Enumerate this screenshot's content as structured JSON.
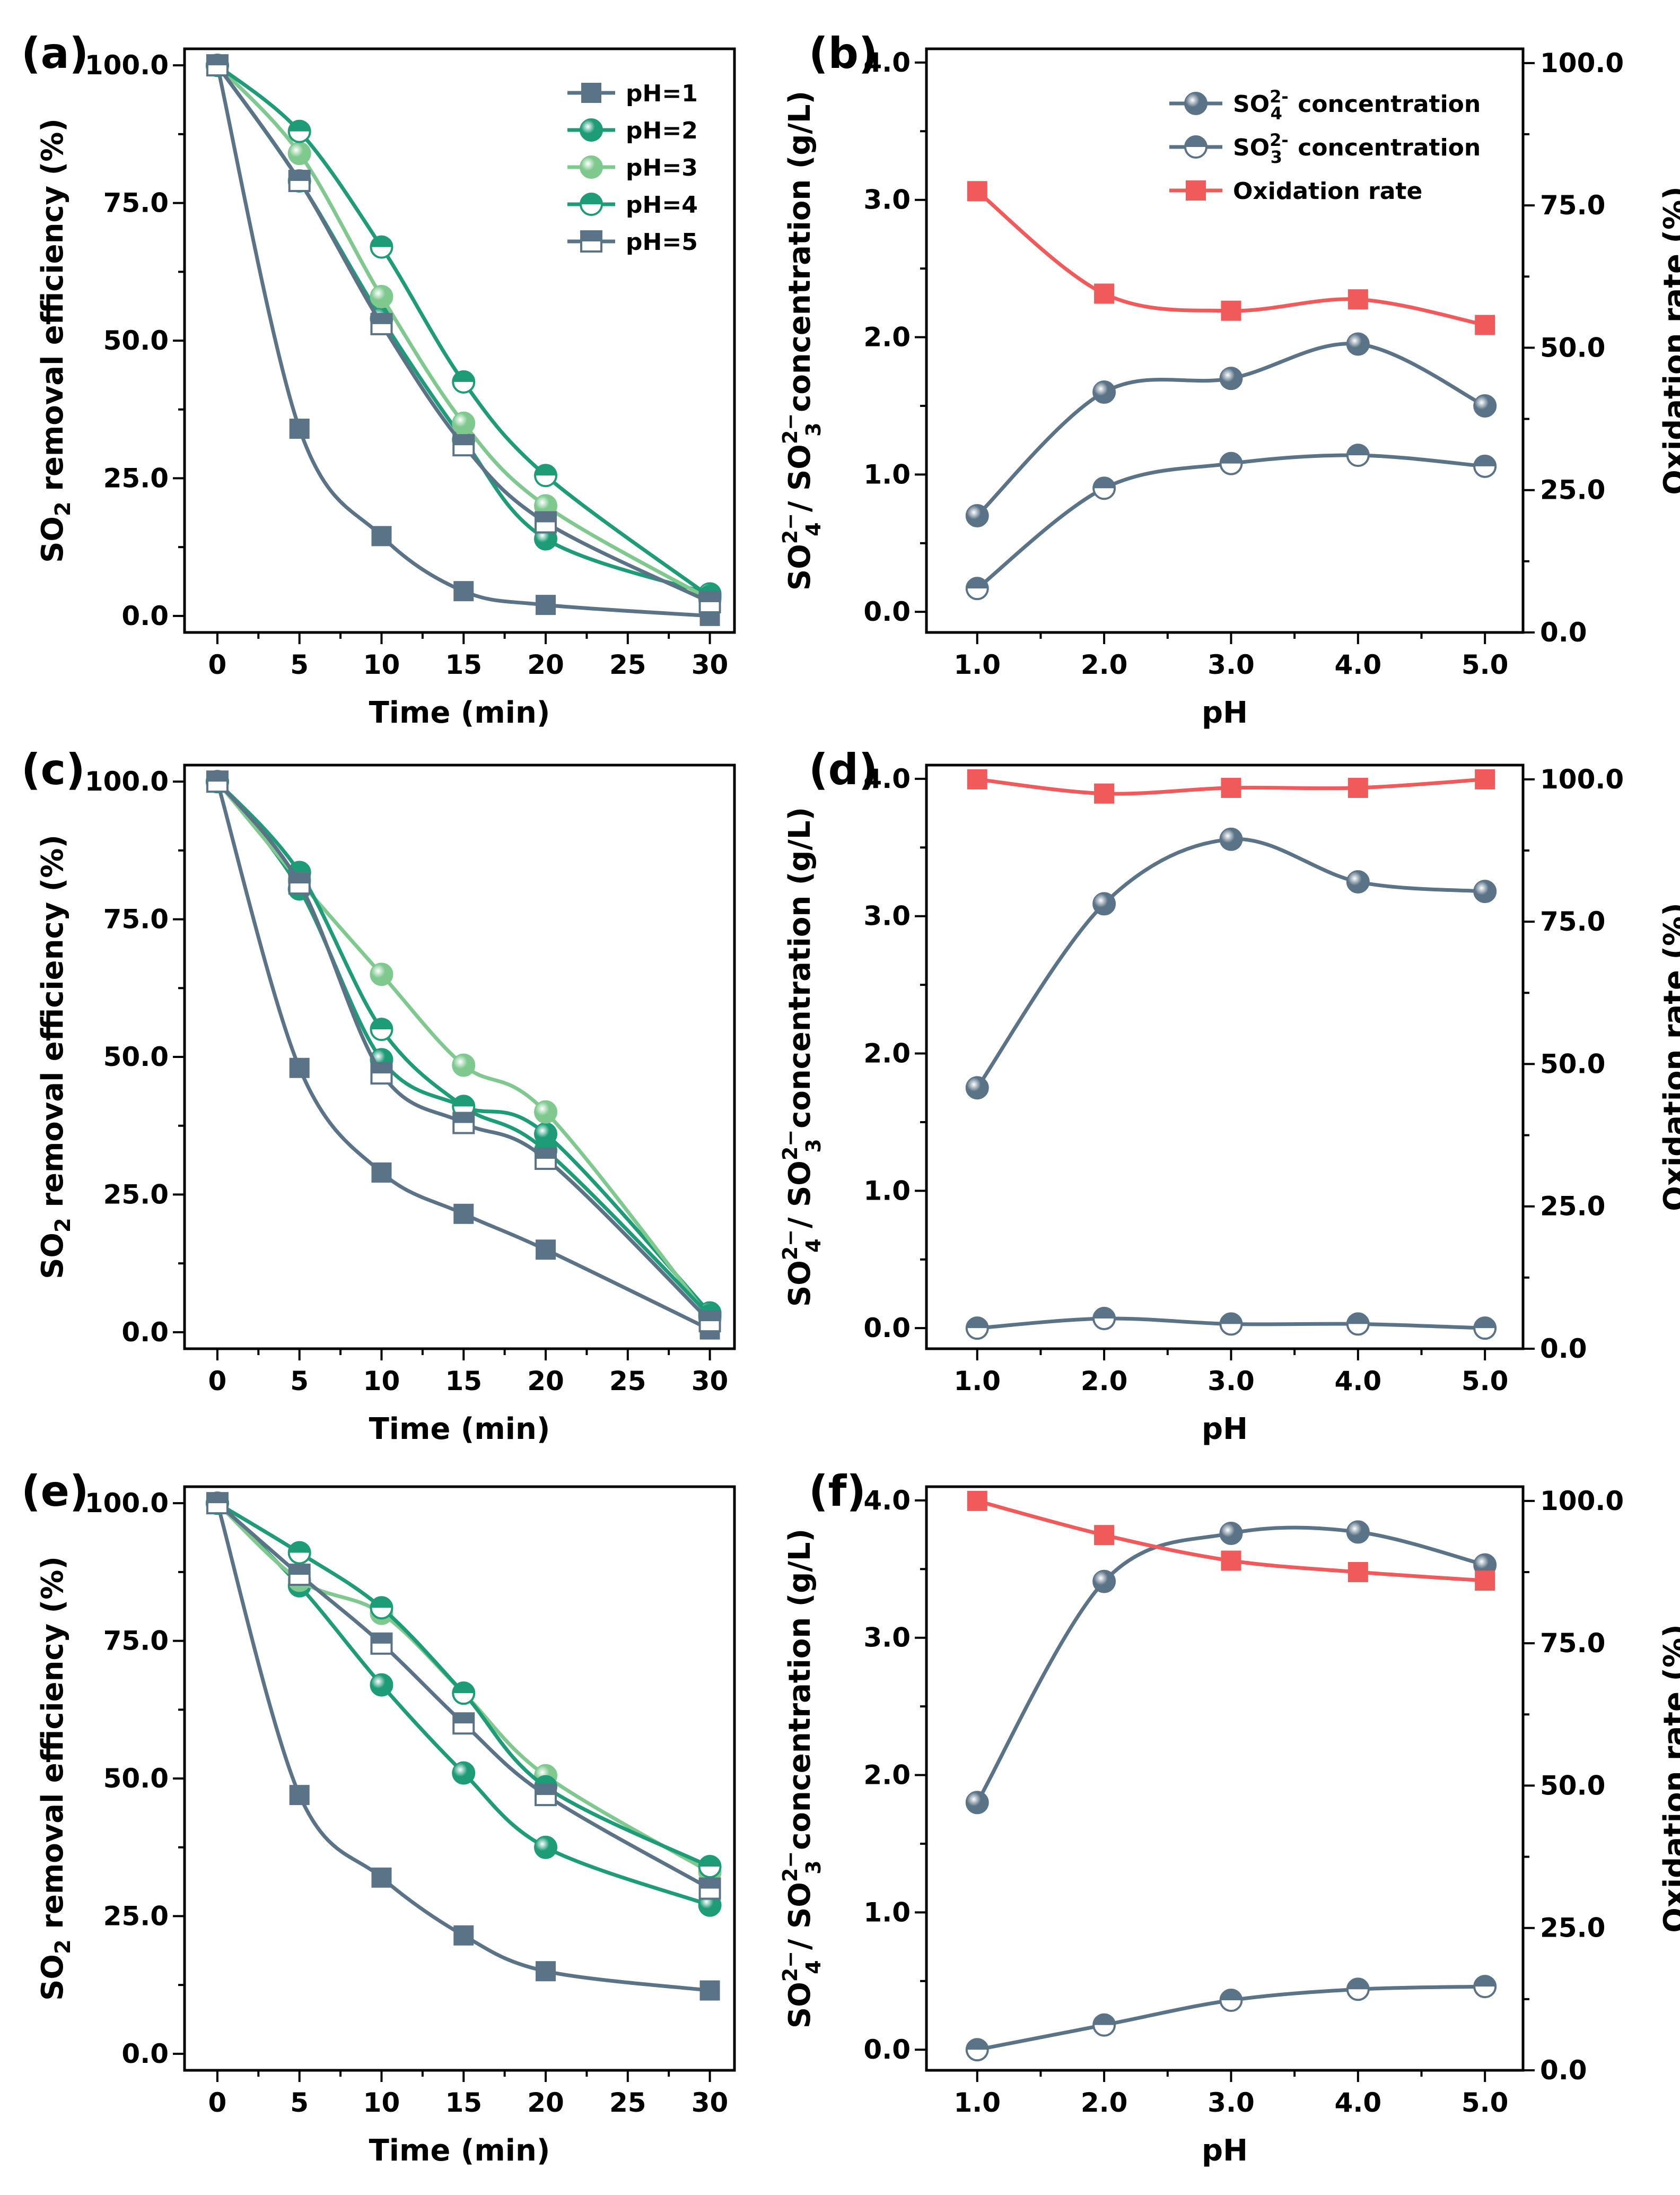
{
  "colors": {
    "ph1": "#5b7386",
    "ph2": "#1e9b77",
    "ph3": "#7fc98f",
    "ph4": "#1e9b77",
    "ph5": "#5b7386",
    "so4": "#5b7386",
    "so3": "#5b7386",
    "ox": "#f05a5a"
  },
  "chart_data": [
    {
      "panel": "(a)",
      "type": "line",
      "xlabel": "Time (min)",
      "ylabel": "SO2 removal efficiency (%)",
      "x": [
        0,
        5,
        10,
        15,
        20,
        30
      ],
      "xticks": [
        "0",
        "5",
        "10",
        "15",
        "20",
        "25",
        "30"
      ],
      "xlim": [
        -2,
        31.5
      ],
      "yticks": [
        "0.0",
        "25.0",
        "50.0",
        "75.0",
        "100.0"
      ],
      "ylim": [
        -3,
        103
      ],
      "legend": "top-right",
      "series": [
        {
          "name": "pH=1",
          "marker": "square-filled",
          "values": [
            100,
            34,
            14.5,
            4.5,
            2,
            0
          ]
        },
        {
          "name": "pH=2",
          "marker": "circle-filled",
          "values": [
            100,
            79,
            54,
            32,
            14,
            4
          ]
        },
        {
          "name": "pH=3",
          "marker": "circle-light",
          "values": [
            100,
            84,
            58,
            35,
            20,
            3
          ]
        },
        {
          "name": "pH=4",
          "marker": "circle-half",
          "values": [
            100,
            88,
            67,
            42.5,
            25.5,
            3.5
          ]
        },
        {
          "name": "pH=5",
          "marker": "square-half",
          "values": [
            100,
            79,
            53,
            31,
            17,
            2.5
          ]
        }
      ]
    },
    {
      "panel": "(b)",
      "type": "line",
      "xlabel": "pH",
      "ylabel": "SO4 2- / SO3 2- concentration (g/L)",
      "y2label": "Oxidation rate (%)",
      "x": [
        1,
        2,
        3,
        4,
        5
      ],
      "xticks": [
        "1.0",
        "2.0",
        "3.0",
        "4.0",
        "5.0"
      ],
      "xlim": [
        0.6,
        5.3
      ],
      "yticks": [
        "0.0",
        "1.0",
        "2.0",
        "3.0",
        "4.0"
      ],
      "ylim": [
        -0.15,
        4.1
      ],
      "y2ticks": [
        "0.0",
        "25.0",
        "50.0",
        "75.0",
        "100.0"
      ],
      "y2lim": [
        0,
        102.5
      ],
      "legend": "top-right",
      "series": [
        {
          "name": "SO42- concentration",
          "axis": "left",
          "marker": "circle-filled",
          "values": [
            0.7,
            1.6,
            1.7,
            1.95,
            1.5
          ]
        },
        {
          "name": "SO32- concentration",
          "axis": "left",
          "marker": "circle-half",
          "values": [
            0.17,
            0.9,
            1.08,
            1.14,
            1.06
          ]
        },
        {
          "name": "Oxidation rate",
          "axis": "right",
          "marker": "square-filled",
          "values": [
            77.5,
            59.5,
            56.5,
            58.5,
            54
          ]
        }
      ]
    },
    {
      "panel": "(c)",
      "type": "line",
      "xlabel": "Time (min)",
      "ylabel": "SO2 removal efficiency (%)",
      "x": [
        0,
        5,
        10,
        15,
        20,
        30
      ],
      "xticks": [
        "0",
        "5",
        "10",
        "15",
        "20",
        "25",
        "30"
      ],
      "xlim": [
        -2,
        31.5
      ],
      "yticks": [
        "0.0",
        "25.0",
        "50.0",
        "75.0",
        "100.0"
      ],
      "ylim": [
        -3,
        103
      ],
      "series": [
        {
          "name": "pH=1",
          "marker": "square-filled",
          "values": [
            100,
            48,
            29,
            21.5,
            15,
            0.5
          ]
        },
        {
          "name": "pH=2",
          "marker": "circle-filled",
          "values": [
            100,
            80.5,
            49.5,
            41,
            36,
            3.5
          ]
        },
        {
          "name": "pH=3",
          "marker": "circle-light",
          "values": [
            100,
            82,
            65,
            48.5,
            40,
            2.5
          ]
        },
        {
          "name": "pH=4",
          "marker": "circle-half",
          "values": [
            100,
            83.5,
            55,
            41,
            33,
            3
          ]
        },
        {
          "name": "pH=5",
          "marker": "square-half",
          "values": [
            100,
            81.5,
            47,
            38,
            31.5,
            2
          ]
        }
      ]
    },
    {
      "panel": "(d)",
      "type": "line",
      "xlabel": "pH",
      "ylabel": "SO4 2- / SO3 2- concentration (g/L)",
      "y2label": "Oxidation rate (%)",
      "x": [
        1,
        2,
        3,
        4,
        5
      ],
      "xticks": [
        "1.0",
        "2.0",
        "3.0",
        "4.0",
        "5.0"
      ],
      "xlim": [
        0.6,
        5.3
      ],
      "yticks": [
        "0.0",
        "1.0",
        "2.0",
        "3.0",
        "4.0"
      ],
      "ylim": [
        -0.15,
        4.1
      ],
      "y2ticks": [
        "0.0",
        "25.0",
        "50.0",
        "75.0",
        "100.0"
      ],
      "y2lim": [
        0,
        102.5
      ],
      "series": [
        {
          "name": "SO42- concentration",
          "axis": "left",
          "marker": "circle-filled",
          "values": [
            1.75,
            3.09,
            3.56,
            3.25,
            3.18
          ]
        },
        {
          "name": "SO32- concentration",
          "axis": "left",
          "marker": "circle-half",
          "values": [
            0.0,
            0.07,
            0.03,
            0.03,
            0.0
          ]
        },
        {
          "name": "Oxidation rate",
          "axis": "right",
          "marker": "square-filled",
          "values": [
            100,
            97.5,
            98.5,
            98.5,
            100
          ]
        }
      ]
    },
    {
      "panel": "(e)",
      "type": "line",
      "xlabel": "Time (min)",
      "ylabel": "SO2 removal efficiency (%)",
      "x": [
        0,
        5,
        10,
        15,
        20,
        30
      ],
      "xticks": [
        "0",
        "5",
        "10",
        "15",
        "20",
        "25",
        "30"
      ],
      "xlim": [
        -2,
        31.5
      ],
      "yticks": [
        "0.0",
        "25.0",
        "50.0",
        "75.0",
        "100.0"
      ],
      "ylim": [
        -3,
        103
      ],
      "series": [
        {
          "name": "pH=1",
          "marker": "square-filled",
          "values": [
            100,
            47,
            32,
            21.5,
            15,
            11.5
          ]
        },
        {
          "name": "pH=2",
          "marker": "circle-filled",
          "values": [
            100,
            85,
            67,
            51,
            37.5,
            27
          ]
        },
        {
          "name": "pH=3",
          "marker": "circle-light",
          "values": [
            100,
            86,
            80,
            65.5,
            50.5,
            33
          ]
        },
        {
          "name": "pH=4",
          "marker": "circle-half",
          "values": [
            100,
            91,
            81,
            65.5,
            48.5,
            34
          ]
        },
        {
          "name": "pH=5",
          "marker": "square-half",
          "values": [
            100,
            87,
            74.5,
            60,
            47,
            30
          ]
        }
      ]
    },
    {
      "panel": "(f)",
      "type": "line",
      "xlabel": "pH",
      "ylabel": "SO4 2- / SO3 2- concentration (g/L)",
      "y2label": "Oxidation rate (%)",
      "x": [
        1,
        2,
        3,
        4,
        5
      ],
      "xticks": [
        "1.0",
        "2.0",
        "3.0",
        "4.0",
        "5.0"
      ],
      "xlim": [
        0.6,
        5.3
      ],
      "yticks": [
        "0.0",
        "1.0",
        "2.0",
        "3.0",
        "4.0"
      ],
      "ylim": [
        -0.15,
        4.1
      ],
      "y2ticks": [
        "0.0",
        "25.0",
        "50.0",
        "75.0",
        "100.0"
      ],
      "y2lim": [
        0,
        102.5
      ],
      "series": [
        {
          "name": "SO42- concentration",
          "axis": "left",
          "marker": "circle-filled",
          "values": [
            1.8,
            3.41,
            3.76,
            3.77,
            3.53
          ]
        },
        {
          "name": "SO32- concentration",
          "axis": "left",
          "marker": "circle-half",
          "values": [
            0.0,
            0.18,
            0.36,
            0.44,
            0.46
          ]
        },
        {
          "name": "Oxidation rate",
          "axis": "right",
          "marker": "square-filled",
          "values": [
            100,
            94,
            89.5,
            87.5,
            86
          ]
        }
      ]
    }
  ]
}
